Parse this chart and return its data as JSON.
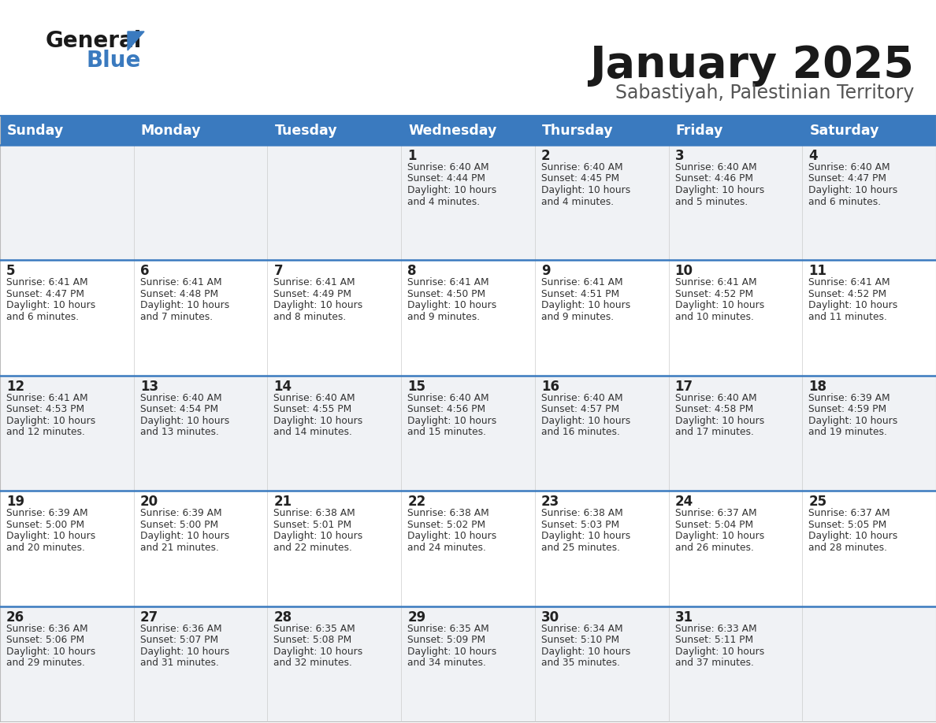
{
  "title": "January 2025",
  "subtitle": "Sabastiyah, Palestinian Territory",
  "header_bg_color": "#3a7abf",
  "header_text_color": "#ffffff",
  "cell_bg_light": "#f0f2f5",
  "cell_bg_white": "#ffffff",
  "text_color": "#333333",
  "day_number_color": "#222222",
  "separator_color": "#3a7abf",
  "days_of_week": [
    "Sunday",
    "Monday",
    "Tuesday",
    "Wednesday",
    "Thursday",
    "Friday",
    "Saturday"
  ],
  "weeks": [
    [
      {
        "day": 0,
        "sunrise": "",
        "sunset": "",
        "daylight": ""
      },
      {
        "day": 0,
        "sunrise": "",
        "sunset": "",
        "daylight": ""
      },
      {
        "day": 0,
        "sunrise": "",
        "sunset": "",
        "daylight": ""
      },
      {
        "day": 1,
        "sunrise": "6:40 AM",
        "sunset": "4:44 PM",
        "daylight": "10 hours and 4 minutes."
      },
      {
        "day": 2,
        "sunrise": "6:40 AM",
        "sunset": "4:45 PM",
        "daylight": "10 hours and 4 minutes."
      },
      {
        "day": 3,
        "sunrise": "6:40 AM",
        "sunset": "4:46 PM",
        "daylight": "10 hours and 5 minutes."
      },
      {
        "day": 4,
        "sunrise": "6:40 AM",
        "sunset": "4:47 PM",
        "daylight": "10 hours and 6 minutes."
      }
    ],
    [
      {
        "day": 5,
        "sunrise": "6:41 AM",
        "sunset": "4:47 PM",
        "daylight": "10 hours and 6 minutes."
      },
      {
        "day": 6,
        "sunrise": "6:41 AM",
        "sunset": "4:48 PM",
        "daylight": "10 hours and 7 minutes."
      },
      {
        "day": 7,
        "sunrise": "6:41 AM",
        "sunset": "4:49 PM",
        "daylight": "10 hours and 8 minutes."
      },
      {
        "day": 8,
        "sunrise": "6:41 AM",
        "sunset": "4:50 PM",
        "daylight": "10 hours and 9 minutes."
      },
      {
        "day": 9,
        "sunrise": "6:41 AM",
        "sunset": "4:51 PM",
        "daylight": "10 hours and 9 minutes."
      },
      {
        "day": 10,
        "sunrise": "6:41 AM",
        "sunset": "4:52 PM",
        "daylight": "10 hours and 10 minutes."
      },
      {
        "day": 11,
        "sunrise": "6:41 AM",
        "sunset": "4:52 PM",
        "daylight": "10 hours and 11 minutes."
      }
    ],
    [
      {
        "day": 12,
        "sunrise": "6:41 AM",
        "sunset": "4:53 PM",
        "daylight": "10 hours and 12 minutes."
      },
      {
        "day": 13,
        "sunrise": "6:40 AM",
        "sunset": "4:54 PM",
        "daylight": "10 hours and 13 minutes."
      },
      {
        "day": 14,
        "sunrise": "6:40 AM",
        "sunset": "4:55 PM",
        "daylight": "10 hours and 14 minutes."
      },
      {
        "day": 15,
        "sunrise": "6:40 AM",
        "sunset": "4:56 PM",
        "daylight": "10 hours and 15 minutes."
      },
      {
        "day": 16,
        "sunrise": "6:40 AM",
        "sunset": "4:57 PM",
        "daylight": "10 hours and 16 minutes."
      },
      {
        "day": 17,
        "sunrise": "6:40 AM",
        "sunset": "4:58 PM",
        "daylight": "10 hours and 17 minutes."
      },
      {
        "day": 18,
        "sunrise": "6:39 AM",
        "sunset": "4:59 PM",
        "daylight": "10 hours and 19 minutes."
      }
    ],
    [
      {
        "day": 19,
        "sunrise": "6:39 AM",
        "sunset": "5:00 PM",
        "daylight": "10 hours and 20 minutes."
      },
      {
        "day": 20,
        "sunrise": "6:39 AM",
        "sunset": "5:00 PM",
        "daylight": "10 hours and 21 minutes."
      },
      {
        "day": 21,
        "sunrise": "6:38 AM",
        "sunset": "5:01 PM",
        "daylight": "10 hours and 22 minutes."
      },
      {
        "day": 22,
        "sunrise": "6:38 AM",
        "sunset": "5:02 PM",
        "daylight": "10 hours and 24 minutes."
      },
      {
        "day": 23,
        "sunrise": "6:38 AM",
        "sunset": "5:03 PM",
        "daylight": "10 hours and 25 minutes."
      },
      {
        "day": 24,
        "sunrise": "6:37 AM",
        "sunset": "5:04 PM",
        "daylight": "10 hours and 26 minutes."
      },
      {
        "day": 25,
        "sunrise": "6:37 AM",
        "sunset": "5:05 PM",
        "daylight": "10 hours and 28 minutes."
      }
    ],
    [
      {
        "day": 26,
        "sunrise": "6:36 AM",
        "sunset": "5:06 PM",
        "daylight": "10 hours and 29 minutes."
      },
      {
        "day": 27,
        "sunrise": "6:36 AM",
        "sunset": "5:07 PM",
        "daylight": "10 hours and 31 minutes."
      },
      {
        "day": 28,
        "sunrise": "6:35 AM",
        "sunset": "5:08 PM",
        "daylight": "10 hours and 32 minutes."
      },
      {
        "day": 29,
        "sunrise": "6:35 AM",
        "sunset": "5:09 PM",
        "daylight": "10 hours and 34 minutes."
      },
      {
        "day": 30,
        "sunrise": "6:34 AM",
        "sunset": "5:10 PM",
        "daylight": "10 hours and 35 minutes."
      },
      {
        "day": 31,
        "sunrise": "6:33 AM",
        "sunset": "5:11 PM",
        "daylight": "10 hours and 37 minutes."
      },
      {
        "day": 0,
        "sunrise": "",
        "sunset": "",
        "daylight": ""
      }
    ]
  ]
}
